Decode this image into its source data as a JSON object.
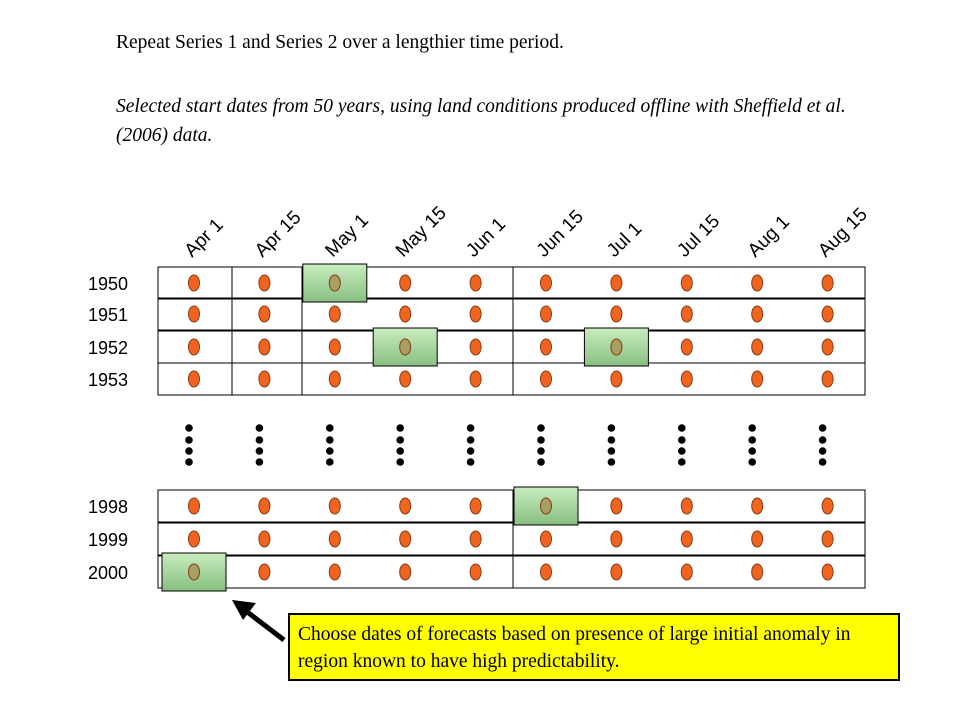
{
  "intro": {
    "line1": "Repeat Series 1 and Series 2 over a lengthier time period.",
    "line2": "Selected start dates from 50 years, using land conditions produced offline with Sheffield et al. (2006) data."
  },
  "start_dates": [
    "Apr 1",
    "Apr 15",
    "May 1",
    "May 15",
    "Jun 1",
    "Jun 15",
    "Jul 1",
    "Jul 15",
    "Aug 1",
    "Aug 15"
  ],
  "years_top": [
    "1950",
    "1951",
    "1952",
    "1953"
  ],
  "years_bottom": [
    "1998",
    "1999",
    "2000"
  ],
  "selected": [
    {
      "year": "1950",
      "date": "May 1"
    },
    {
      "year": "1952",
      "date": "May 15"
    },
    {
      "year": "1952",
      "date": "Jul 1"
    },
    {
      "year": "1998",
      "date": "Jun 15"
    },
    {
      "year": "2000",
      "date": "Apr 1"
    }
  ],
  "callout": {
    "text": "Choose dates of forecasts based on presence of large initial anomaly in region known to have high predictability."
  },
  "colors": {
    "dot_fill": "#f06420",
    "dot_stroke": "#8a3a14",
    "selected_dot_fill": "#a8a060",
    "highlight_fill": "#a8d8a0",
    "callout_bg": "#ffff00"
  }
}
